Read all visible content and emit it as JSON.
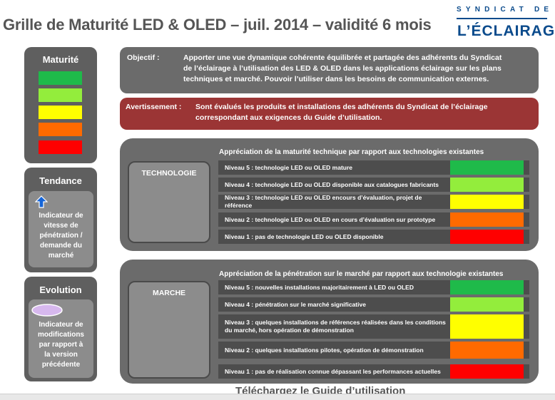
{
  "header": {
    "title": "Grille de Maturité LED & OLED – juil. 2014 – validité 6 mois",
    "logo_top": "SYNDICAT DE",
    "logo_main": "L’ÉCLAIRAGE"
  },
  "colors": {
    "green": "#1fba4a",
    "light_green": "#93ed3c",
    "yellow": "#ffff00",
    "orange": "#ff6a00",
    "red": "#ff0000",
    "panel_gray": "#5f5f5f",
    "section_gray": "#6b6b6b",
    "alert_red": "#9b3535",
    "trend_blue": "#1565d8",
    "evolution_lavender": "#d7b8ee"
  },
  "sidebar": {
    "maturity_title": "Maturité",
    "tendance": {
      "title": "Tendance",
      "icon": "arrow-up-icon",
      "text_lines": [
        "Indicateur de",
        "vitesse de",
        "pénétration /",
        "demande du",
        "marché"
      ]
    },
    "evolution": {
      "title": "Evolution",
      "icon": "oval-icon",
      "text_lines": [
        "Indicateur de",
        "modifications",
        "par rapport à",
        "la version",
        "précédente"
      ]
    }
  },
  "objectif": {
    "label": "Objectif :",
    "lines": [
      "Apporter une vue dynamique cohérente équilibrée et partagée des adhérents du Syndicat",
      "de l’éclairage à l’utilisation des LED & OLED dans les applications éclairage sur les plans",
      "techniques et marché. Pouvoir l’utiliser dans les besoins de communication externes."
    ]
  },
  "avertissement": {
    "label": "Avertissement :",
    "lines": [
      "Sont évalués les produits et installations des adhérents du Syndicat de l’éclairage",
      "correspondant aux exigences du Guide d’utilisation."
    ]
  },
  "technologie": {
    "category": "TECHNOLOGIE",
    "heading": "Appréciation de la maturité technique par rapport aux technologies existantes",
    "levels": [
      {
        "text": "Niveau  5 : technologie LED ou OLED mature",
        "color": "green"
      },
      {
        "text": "Niveau 4 : technologie LED ou OLED disponible aux catalogues fabricants",
        "color": "light_green"
      },
      {
        "text": "Niveau 3 : technologie LED ou OLED encours d’évaluation, projet de référence",
        "color": "yellow"
      },
      {
        "text": "Niveau 2 : technologie LED ou OLED en cours d’évaluation sur prototype",
        "color": "orange"
      },
      {
        "text": "Niveau 1 : pas de technologie LED ou OLED disponible",
        "color": "red"
      }
    ]
  },
  "marche": {
    "category": "MARCHE",
    "heading": "Appréciation de la pénétration sur le marché par rapport aux technologie existantes",
    "levels": [
      {
        "text": "Niveau  5 : nouvelles installations majoritairement à LED ou OLED",
        "color": "green"
      },
      {
        "text": "Niveau 4 : pénétration sur le marché significative",
        "color": "light_green"
      },
      {
        "text": "Niveau 3 : quelques installations de références  réalisées dans les conditions du marché, hors opération de démonstration",
        "color": "yellow"
      },
      {
        "text": "Niveau 2 : quelques installations pilotes, opération de démonstration",
        "color": "orange"
      },
      {
        "text": "Niveau 1 : pas de réalisation connue dépassant les performances actuelles",
        "color": "red"
      }
    ]
  },
  "footer": {
    "text": "Téléchargez le Guide d’utilisation"
  }
}
